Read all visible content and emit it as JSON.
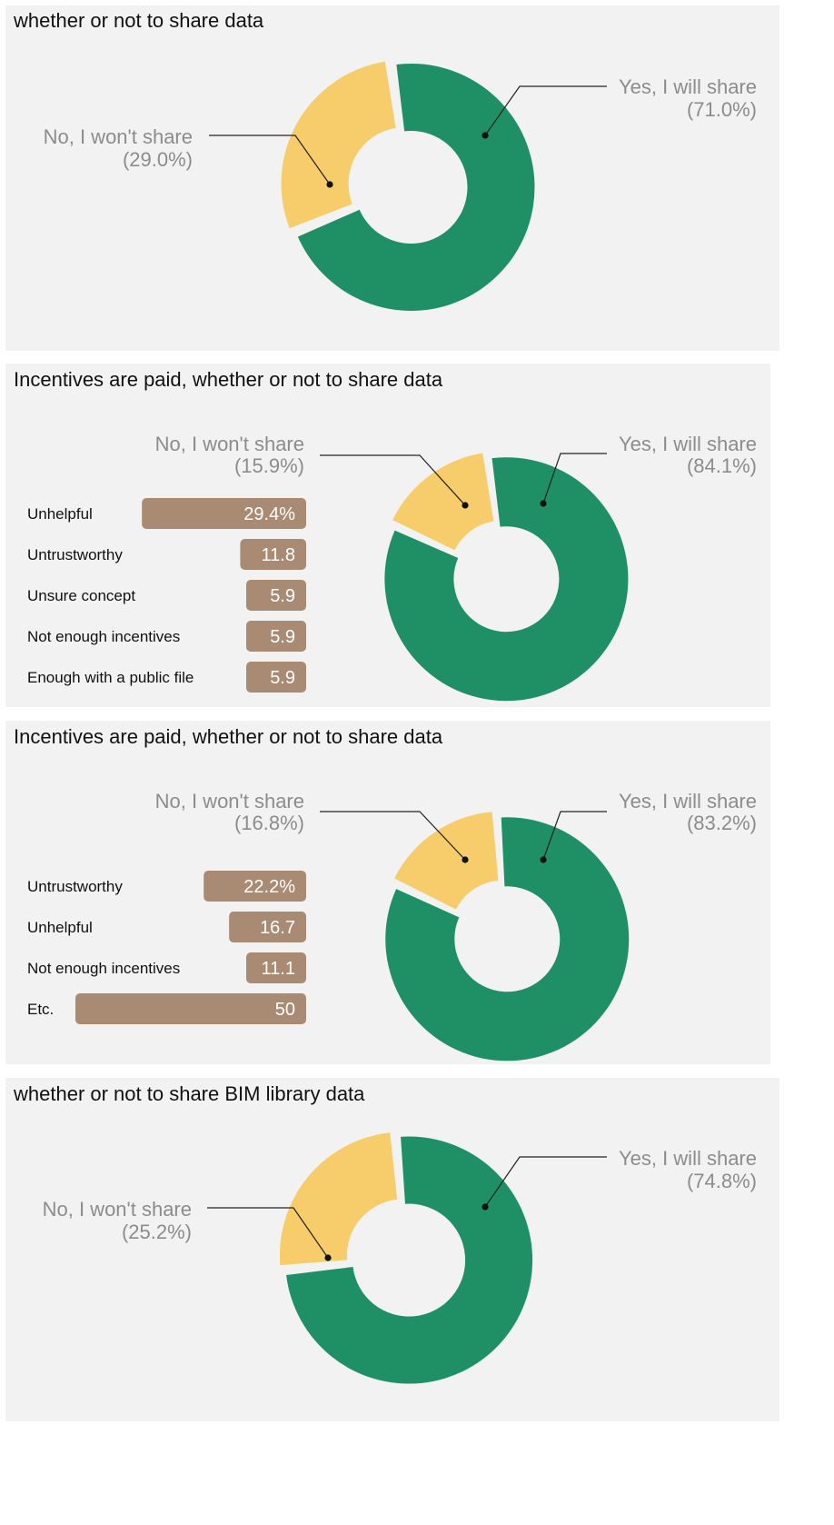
{
  "colors": {
    "yes": "#1f8f66",
    "no": "#f6cd6a",
    "bar": "#a98a73",
    "panel": "#f2f2f2"
  },
  "chart_data": [
    {
      "type": "pie",
      "title": "whether or not to share data",
      "slices": [
        {
          "label": "Yes, I will share",
          "pct_label": "(71.0%)",
          "value": 71.0
        },
        {
          "label": "No, I won't share",
          "pct_label": "(29.0%)",
          "value": 29.0
        }
      ]
    },
    {
      "type": "pie",
      "title": "Incentives are paid, whether or not to share data",
      "slices": [
        {
          "label": "Yes, I will share",
          "pct_label": "(84.1%)",
          "value": 84.1
        },
        {
          "label": "No, I won't share",
          "pct_label": "(15.9%)",
          "value": 15.9
        }
      ],
      "breakdown": {
        "type": "bar",
        "categories": [
          "Unhelpful",
          "Untrustworthy",
          "Unsure concept",
          "Not enough incentives",
          "Enough with a public file"
        ],
        "values": [
          29.4,
          11.8,
          5.9,
          5.9,
          5.9
        ],
        "value_labels": [
          "29.4%",
          "11.8",
          "5.9",
          "5.9",
          "5.9"
        ]
      }
    },
    {
      "type": "pie",
      "title": "Incentives are paid, whether or not to share data",
      "slices": [
        {
          "label": "Yes, I will share",
          "pct_label": "(83.2%)",
          "value": 83.2
        },
        {
          "label": "No, I won't share",
          "pct_label": "(16.8%)",
          "value": 16.8
        }
      ],
      "breakdown": {
        "type": "bar",
        "categories": [
          "Untrustworthy",
          "Unhelpful",
          "Not enough incentives",
          "Etc."
        ],
        "values": [
          22.2,
          16.7,
          11.1,
          50
        ],
        "value_labels": [
          "22.2%",
          "16.7",
          "11.1",
          "50"
        ]
      }
    },
    {
      "type": "pie",
      "title": "whether or not to share BIM library data",
      "slices": [
        {
          "label": "Yes, I will share",
          "pct_label": "(74.8%)",
          "value": 74.8
        },
        {
          "label": "No, I won't share",
          "pct_label": "(25.2%)",
          "value": 25.2
        }
      ]
    }
  ]
}
